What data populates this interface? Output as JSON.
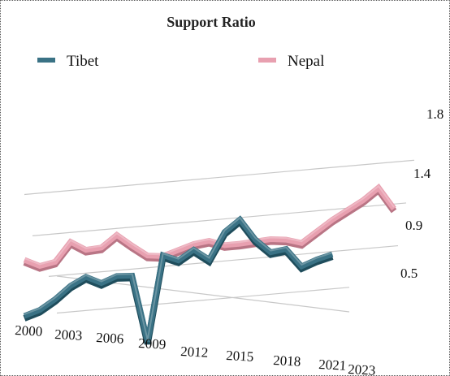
{
  "chart_data": {
    "type": "line",
    "title": "Support Ratio",
    "legend_position": "top",
    "series": [
      {
        "name": "Tibet",
        "color": "#3a7285",
        "x": [
          2000,
          2001,
          2002,
          2003,
          2004,
          2005,
          2006,
          2007,
          2008,
          2009,
          2010,
          2011,
          2012,
          2013,
          2014,
          2015,
          2016,
          2017,
          2018,
          2019,
          2020
        ],
        "values": [
          0.5,
          0.55,
          0.65,
          0.78,
          0.86,
          0.78,
          0.84,
          0.83,
          0.11,
          1.02,
          0.95,
          1.05,
          0.93,
          1.21,
          1.33,
          1.1,
          0.95,
          0.97,
          0.77,
          0.83,
          0.87
        ]
      },
      {
        "name": "Nepal",
        "color": "#e8a0b0",
        "x": [
          2000,
          2001,
          2002,
          2003,
          2004,
          2005,
          2006,
          2007,
          2008,
          2009,
          2010,
          2011,
          2012,
          2013,
          2014,
          2015,
          2016,
          2017,
          2018,
          2019,
          2020,
          2021,
          2022,
          2023,
          2024
        ],
        "values": [
          1.1,
          1.02,
          1.05,
          1.25,
          1.15,
          1.16,
          1.28,
          1.15,
          1.03,
          1.01,
          1.06,
          1.11,
          1.13,
          1.07,
          1.07,
          1.08,
          1.09,
          1.07,
          1.02,
          1.13,
          1.24,
          1.33,
          1.42,
          1.54,
          1.3
        ]
      }
    ],
    "y_ticks": [
      "0.5",
      "0.9",
      "1.4",
      "1.8"
    ],
    "x_ticks": [
      "2000",
      "2003",
      "2006",
      "2009",
      "2012",
      "2015",
      "2018",
      "2021",
      "2023"
    ],
    "ylim": [
      0,
      1.9
    ],
    "grid": true
  }
}
